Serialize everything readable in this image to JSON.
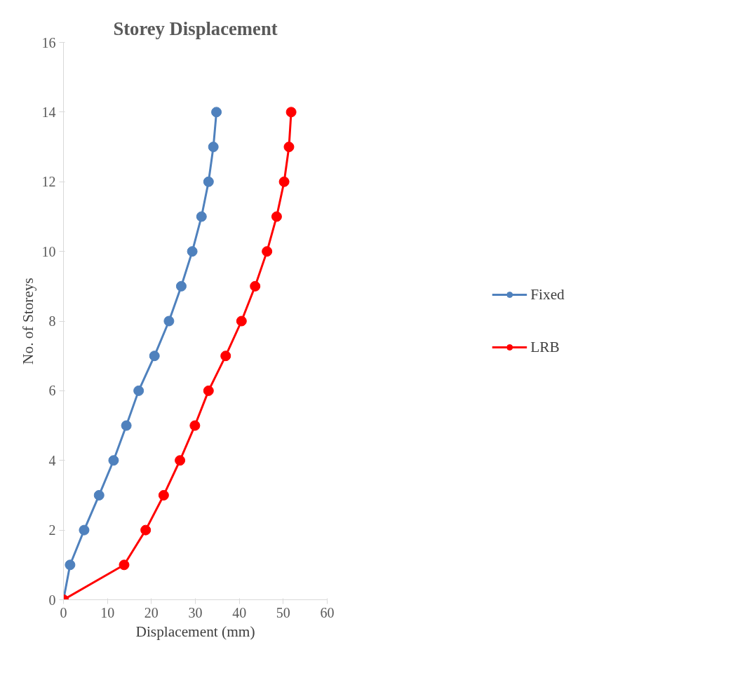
{
  "chart_data": {
    "type": "line",
    "title": "Storey Displacement",
    "xlabel": "Displacement (mm)",
    "ylabel": "No. of Storeys",
    "xlim": [
      0,
      60
    ],
    "xticks": [
      0,
      10,
      20,
      30,
      40,
      50,
      60
    ],
    "ylim": [
      0,
      16
    ],
    "yticks": [
      0,
      2,
      4,
      6,
      8,
      10,
      12,
      14,
      16
    ],
    "grid": false,
    "legend": "right",
    "marker": "circle",
    "line_style": "solid",
    "series": [
      {
        "name": "Fixed",
        "color": "#4f81bd",
        "x": [
          0,
          1.5,
          4.7,
          8.1,
          11.4,
          14.3,
          17.1,
          20.7,
          24.0,
          26.8,
          29.3,
          31.4,
          33.0,
          34.1,
          34.8
        ],
        "values": [
          0,
          1,
          2,
          3,
          4,
          5,
          6,
          7,
          8,
          9,
          10,
          11,
          12,
          13,
          14
        ]
      },
      {
        "name": "LRB",
        "color": "#ff0000",
        "x": [
          0,
          13.8,
          18.7,
          22.8,
          26.5,
          29.9,
          33.0,
          36.9,
          40.5,
          43.6,
          46.3,
          48.5,
          50.2,
          51.3,
          51.8
        ],
        "values": [
          0,
          1,
          2,
          3,
          4,
          5,
          6,
          7,
          8,
          9,
          10,
          11,
          12,
          13,
          14
        ]
      }
    ]
  }
}
